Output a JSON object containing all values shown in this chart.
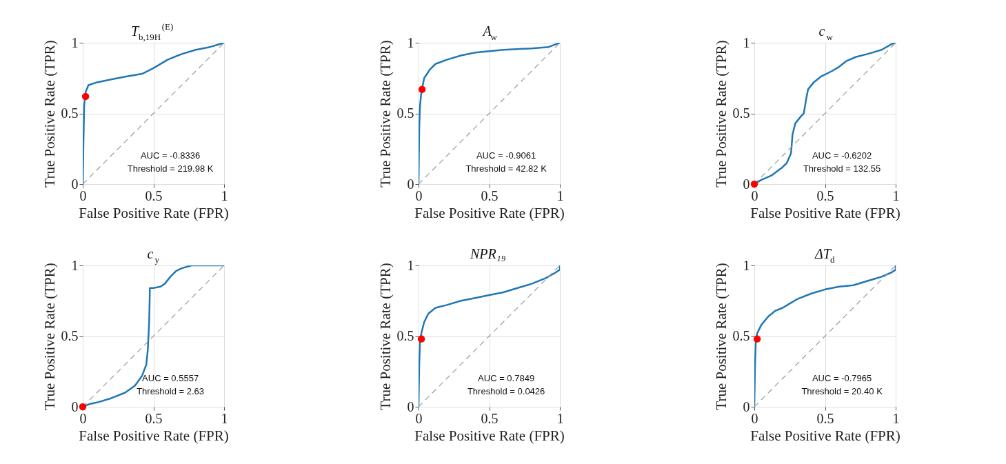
{
  "chart_data": [
    {
      "type": "line",
      "title": "T$_{b,19H}$$^{(E)}$",
      "xlabel": "False Positive Rate (FPR)",
      "ylabel": "True Positive Rate (TPR)",
      "xlim": [
        0,
        1
      ],
      "ylim": [
        0,
        1
      ],
      "xticks": [
        0,
        0.5,
        1
      ],
      "yticks": [
        0,
        0.5,
        1
      ],
      "grid": true,
      "annotations": [
        "AUC = -0.8336",
        "Threshold = 219.98 K"
      ],
      "series": [
        {
          "type": "line",
          "color": "#1f77b4",
          "x": [
            0,
            0.005,
            0.01,
            0.02,
            0.04,
            0.1,
            0.2,
            0.3,
            0.42,
            0.5,
            0.6,
            0.7,
            0.8,
            0.9,
            0.97,
            1
          ],
          "values": [
            0,
            0.3,
            0.55,
            0.65,
            0.7,
            0.72,
            0.74,
            0.76,
            0.78,
            0.82,
            0.88,
            0.92,
            0.95,
            0.97,
            0.99,
            1
          ]
        },
        {
          "type": "line",
          "color": "#999999",
          "line_style": "dashed",
          "x": [
            0,
            1
          ],
          "values": [
            0,
            1
          ]
        },
        {
          "type": "scatter",
          "color": "#ff0000",
          "marker": "circle",
          "x": [
            0.02
          ],
          "values": [
            0.62
          ]
        }
      ]
    },
    {
      "type": "line",
      "title": "A$_{w}$",
      "xlabel": "False Positive Rate (FPR)",
      "ylabel": "True Positive Rate (TPR)",
      "xlim": [
        0,
        1
      ],
      "ylim": [
        0,
        1
      ],
      "xticks": [
        0,
        0.5,
        1
      ],
      "yticks": [
        0,
        0.5,
        1
      ],
      "grid": true,
      "annotations": [
        "AUC = -0.9061",
        "Threshold = 42.82 K"
      ],
      "series": [
        {
          "type": "line",
          "color": "#1f77b4",
          "x": [
            0,
            0.005,
            0.01,
            0.02,
            0.04,
            0.08,
            0.12,
            0.2,
            0.3,
            0.4,
            0.5,
            0.6,
            0.8,
            0.92,
            1
          ],
          "values": [
            0,
            0.4,
            0.55,
            0.65,
            0.75,
            0.81,
            0.85,
            0.88,
            0.91,
            0.93,
            0.94,
            0.95,
            0.96,
            0.97,
            1
          ]
        },
        {
          "type": "line",
          "color": "#999999",
          "line_style": "dashed",
          "x": [
            0,
            1
          ],
          "values": [
            0,
            1
          ]
        },
        {
          "type": "scatter",
          "color": "#ff0000",
          "marker": "circle",
          "x": [
            0.025
          ],
          "values": [
            0.67
          ]
        }
      ]
    },
    {
      "type": "line",
      "title": "c$_{w}$",
      "xlabel": "False Positive Rate (FPR)",
      "ylabel": "True Positive Rate (TPR)",
      "xlim": [
        0,
        1
      ],
      "ylim": [
        0,
        1
      ],
      "xticks": [
        0,
        0.5,
        1
      ],
      "yticks": [
        0,
        0.5,
        1
      ],
      "grid": true,
      "annotations": [
        "AUC = -0.6202",
        "Threshold = 132.55"
      ],
      "series": [
        {
          "type": "line",
          "color": "#1f77b4",
          "x": [
            0,
            0.05,
            0.12,
            0.2,
            0.23,
            0.26,
            0.27,
            0.29,
            0.33,
            0.35,
            0.37,
            0.38,
            0.42,
            0.47,
            0.55,
            0.6,
            0.65,
            0.72,
            0.8,
            0.9,
            0.97,
            1
          ],
          "values": [
            0,
            0.03,
            0.06,
            0.12,
            0.15,
            0.22,
            0.35,
            0.43,
            0.48,
            0.5,
            0.62,
            0.67,
            0.72,
            0.76,
            0.8,
            0.83,
            0.87,
            0.9,
            0.92,
            0.95,
            0.99,
            1
          ]
        },
        {
          "type": "line",
          "color": "#999999",
          "line_style": "dashed",
          "x": [
            0,
            1
          ],
          "values": [
            0,
            1
          ]
        },
        {
          "type": "scatter",
          "color": "#ff0000",
          "marker": "circle",
          "x": [
            0
          ],
          "values": [
            0
          ]
        }
      ]
    },
    {
      "type": "line",
      "title": "c$_{y}$",
      "xlabel": "False Positive Rate (FPR)",
      "ylabel": "True Positive Rate (TPR)",
      "xlim": [
        0,
        1
      ],
      "ylim": [
        0,
        1
      ],
      "xticks": [
        0,
        0.5,
        1
      ],
      "yticks": [
        0,
        0.5,
        1
      ],
      "grid": true,
      "annotations": [
        "AUC = 0.5557",
        "Threshold = 2.63"
      ],
      "series": [
        {
          "type": "line",
          "color": "#1f77b4",
          "x": [
            0,
            0.05,
            0.1,
            0.2,
            0.3,
            0.37,
            0.42,
            0.45,
            0.46,
            0.47,
            0.475,
            0.5,
            0.55,
            0.58,
            0.62,
            0.66,
            0.7,
            0.77,
            1
          ],
          "values": [
            0,
            0.02,
            0.03,
            0.06,
            0.1,
            0.15,
            0.22,
            0.3,
            0.4,
            0.6,
            0.84,
            0.84,
            0.85,
            0.87,
            0.92,
            0.96,
            0.98,
            1,
            1
          ]
        },
        {
          "type": "line",
          "color": "#999999",
          "line_style": "dashed",
          "x": [
            0,
            1
          ],
          "values": [
            0,
            1
          ]
        },
        {
          "type": "scatter",
          "color": "#ff0000",
          "marker": "circle",
          "x": [
            0
          ],
          "values": [
            0
          ]
        }
      ]
    },
    {
      "type": "line",
      "title": "NPR₁₉",
      "xlabel": "False Positive Rate (FPR)",
      "ylabel": "True Positive Rate (TPR)",
      "xlim": [
        0,
        1
      ],
      "ylim": [
        0,
        1
      ],
      "xticks": [
        0,
        0.5,
        1
      ],
      "yticks": [
        0,
        0.5,
        1
      ],
      "grid": true,
      "annotations": [
        "AUC = 0.7849",
        "Threshold = 0.0426"
      ],
      "series": [
        {
          "type": "line",
          "color": "#1f77b4",
          "x": [
            0,
            0.005,
            0.01,
            0.02,
            0.04,
            0.07,
            0.12,
            0.2,
            0.3,
            0.4,
            0.5,
            0.6,
            0.7,
            0.8,
            0.9,
            0.97,
            1,
            1
          ],
          "values": [
            0,
            0.3,
            0.45,
            0.52,
            0.6,
            0.66,
            0.7,
            0.72,
            0.75,
            0.77,
            0.79,
            0.81,
            0.84,
            0.87,
            0.91,
            0.95,
            0.97,
            1
          ]
        },
        {
          "type": "line",
          "color": "#999999",
          "line_style": "dashed",
          "x": [
            0,
            1
          ],
          "values": [
            0,
            1
          ]
        },
        {
          "type": "scatter",
          "color": "#ff0000",
          "marker": "circle",
          "x": [
            0.02
          ],
          "values": [
            0.48
          ]
        }
      ]
    },
    {
      "type": "line",
      "title": "ΔT$_{d}$",
      "xlabel": "False Positive Rate (FPR)",
      "ylabel": "True Positive Rate (TPR)",
      "xlim": [
        0,
        1
      ],
      "ylim": [
        0,
        1
      ],
      "xticks": [
        0,
        0.5,
        1
      ],
      "yticks": [
        0,
        0.5,
        1
      ],
      "grid": true,
      "annotations": [
        "AUC = -0.7965",
        "Threshold = 20.40 K"
      ],
      "series": [
        {
          "type": "line",
          "color": "#1f77b4",
          "x": [
            0,
            0.005,
            0.01,
            0.02,
            0.05,
            0.1,
            0.15,
            0.2,
            0.25,
            0.3,
            0.4,
            0.5,
            0.6,
            0.7,
            0.8,
            0.9,
            0.97,
            1,
            1
          ],
          "values": [
            0,
            0.3,
            0.45,
            0.52,
            0.58,
            0.64,
            0.68,
            0.7,
            0.73,
            0.76,
            0.8,
            0.83,
            0.85,
            0.86,
            0.89,
            0.92,
            0.95,
            0.97,
            1
          ]
        },
        {
          "type": "line",
          "color": "#999999",
          "line_style": "dashed",
          "x": [
            0,
            1
          ],
          "values": [
            0,
            1
          ]
        },
        {
          "type": "scatter",
          "color": "#ff0000",
          "marker": "circle",
          "x": [
            0.02
          ],
          "values": [
            0.48
          ]
        }
      ]
    }
  ]
}
